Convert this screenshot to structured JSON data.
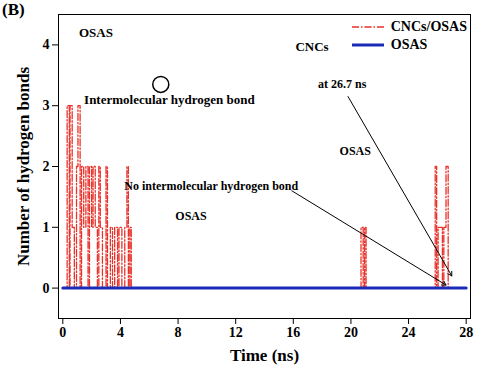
{
  "chart_data": {
    "type": "line",
    "title": "(B)",
    "xlabel": "Time (ns)",
    "ylabel": "Number of hydrogen bonds",
    "xlim": [
      -0.3,
      28.3
    ],
    "xticks": [
      0,
      4,
      8,
      12,
      16,
      20,
      24,
      28
    ],
    "ylim": [
      -0.5,
      4.5
    ],
    "yticks": [
      0,
      1,
      2,
      3,
      4
    ],
    "legend": "upper right",
    "series": [
      {
        "name": "CNCs/OSAS",
        "color": "#e8322a",
        "line_style": "dashdot",
        "x": [
          0,
          0.3,
          0.45,
          0.5,
          0.65,
          0.8,
          0.95,
          1.05,
          1.2,
          1.3,
          1.45,
          1.6,
          1.75,
          1.85,
          2.0,
          2.1,
          2.25,
          2.4,
          2.5,
          2.6,
          2.75,
          3.0,
          3.1,
          3.3,
          3.45,
          3.6,
          3.8,
          3.9,
          4.1,
          4.3,
          4.45,
          4.55,
          4.65,
          4.75,
          20.7,
          20.85,
          20.95,
          21.05,
          25.85,
          25.95,
          26.05,
          26.35,
          26.45,
          26.6,
          26.75,
          28
        ],
        "values": [
          0,
          3,
          0,
          3,
          1,
          0,
          2,
          3,
          0,
          2,
          1,
          2,
          0,
          2,
          1,
          2,
          1,
          0,
          2,
          1,
          0,
          2,
          0,
          1,
          0,
          1,
          0,
          1,
          0,
          1,
          2,
          0,
          1,
          0,
          1,
          0,
          1,
          0,
          2,
          0,
          1,
          0,
          1,
          2,
          0,
          0
        ]
      },
      {
        "name": "OSAS",
        "color": "#1a2bb8",
        "line_style": "solid",
        "x": [
          0,
          28
        ],
        "values": [
          0,
          0
        ]
      }
    ],
    "annotations": [
      {
        "text": "OSAS"
      },
      {
        "text": "CNCs"
      },
      {
        "text": "Intermolecular hydrogen bond"
      },
      {
        "text": "at 26.7 ns"
      },
      {
        "text": "No intermolecular hydrogen bond"
      },
      {
        "text": "OSAS"
      },
      {
        "text": "OSAS"
      }
    ]
  }
}
